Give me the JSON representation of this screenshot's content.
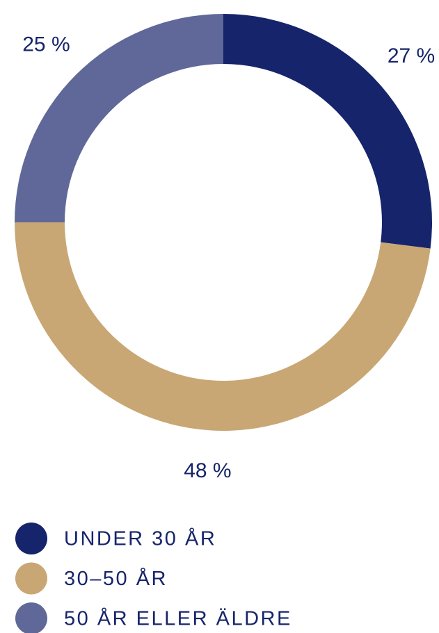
{
  "chart_data": {
    "type": "donut",
    "categories": [
      "UNDER 30 ÅR",
      "30–50 ÅR",
      "50 ÅR ELLER ÄLDRE"
    ],
    "values": [
      27,
      48,
      25
    ],
    "value_labels": [
      "27 %",
      "48 %",
      "25 %"
    ],
    "colors": [
      "#16246b",
      "#c9a774",
      "#5f6899"
    ]
  }
}
